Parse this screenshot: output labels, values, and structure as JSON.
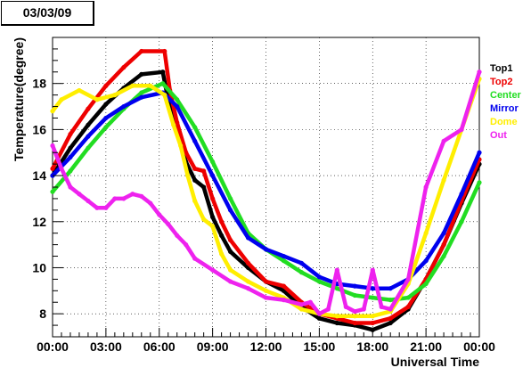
{
  "date_label": "03/03/09",
  "chart_data": {
    "type": "scatter",
    "xlabel": "Universal Time",
    "ylabel": "Temperature(degree)",
    "xlim": [
      0,
      24
    ],
    "ylim": [
      7,
      20
    ],
    "x_ticks": [
      {
        "value": 0,
        "label": "00:00"
      },
      {
        "value": 3,
        "label": "03:00"
      },
      {
        "value": 6,
        "label": "06:00"
      },
      {
        "value": 9,
        "label": "09:00"
      },
      {
        "value": 12,
        "label": "12:00"
      },
      {
        "value": 15,
        "label": "15:00"
      },
      {
        "value": 18,
        "label": "18:00"
      },
      {
        "value": 21,
        "label": "21:00"
      },
      {
        "value": 24,
        "label": "00:00"
      }
    ],
    "y_ticks": [
      {
        "value": 8,
        "label": "8"
      },
      {
        "value": 10,
        "label": "10"
      },
      {
        "value": 12,
        "label": "12"
      },
      {
        "value": 14,
        "label": "14"
      },
      {
        "value": 16,
        "label": "16"
      },
      {
        "value": 18,
        "label": "18"
      }
    ],
    "grid": true,
    "legend_position": "right",
    "series": [
      {
        "name": "Top1",
        "color": "#000000",
        "points": [
          [
            0,
            14
          ],
          [
            1,
            15.2
          ],
          [
            2,
            16.2
          ],
          [
            3,
            17.1
          ],
          [
            4,
            17.8
          ],
          [
            5,
            18.4
          ],
          [
            6.2,
            18.5
          ],
          [
            6.5,
            17.3
          ],
          [
            7,
            16
          ],
          [
            7.5,
            14.6
          ],
          [
            8,
            13.8
          ],
          [
            8.5,
            13.5
          ],
          [
            9,
            12.2
          ],
          [
            9.5,
            11.4
          ],
          [
            10,
            10.7
          ],
          [
            11,
            10
          ],
          [
            12,
            9.4
          ],
          [
            13,
            9
          ],
          [
            14,
            8.3
          ],
          [
            15,
            7.8
          ],
          [
            16,
            7.6
          ],
          [
            17,
            7.5
          ],
          [
            18,
            7.3
          ],
          [
            19,
            7.6
          ],
          [
            20,
            8.2
          ],
          [
            21,
            9.5
          ],
          [
            22,
            11
          ],
          [
            23,
            12.8
          ],
          [
            24,
            14.5
          ]
        ]
      },
      {
        "name": "Top2",
        "color": "#ee0000",
        "points": [
          [
            0,
            14.3
          ],
          [
            1,
            15.8
          ],
          [
            2,
            16.9
          ],
          [
            3,
            17.9
          ],
          [
            4,
            18.7
          ],
          [
            5,
            19.4
          ],
          [
            6.3,
            19.4
          ],
          [
            6.6,
            17.7
          ],
          [
            7,
            16.3
          ],
          [
            7.5,
            15
          ],
          [
            8,
            14.3
          ],
          [
            8.5,
            14.2
          ],
          [
            9,
            13
          ],
          [
            9.5,
            12
          ],
          [
            10,
            11.2
          ],
          [
            11,
            10.2
          ],
          [
            12,
            9.4
          ],
          [
            13,
            9.2
          ],
          [
            14,
            8.5
          ],
          [
            15,
            8
          ],
          [
            16,
            7.8
          ],
          [
            17,
            7.6
          ],
          [
            18,
            7.6
          ],
          [
            19,
            7.8
          ],
          [
            20,
            8.3
          ],
          [
            21,
            9.5
          ],
          [
            22,
            11
          ],
          [
            23,
            12.9
          ],
          [
            24,
            14.7
          ]
        ]
      },
      {
        "name": "Center",
        "color": "#22dd22",
        "points": [
          [
            0,
            13.3
          ],
          [
            1,
            14.2
          ],
          [
            2,
            15.2
          ],
          [
            3,
            16.1
          ],
          [
            4,
            16.9
          ],
          [
            5,
            17.6
          ],
          [
            6.2,
            18
          ],
          [
            7,
            17.3
          ],
          [
            8,
            16.1
          ],
          [
            9,
            14.6
          ],
          [
            10,
            13
          ],
          [
            11,
            11.5
          ],
          [
            12,
            10.8
          ],
          [
            13,
            10.3
          ],
          [
            14,
            9.8
          ],
          [
            15,
            9.4
          ],
          [
            16,
            9.1
          ],
          [
            17,
            8.8
          ],
          [
            18,
            8.7
          ],
          [
            19,
            8.6
          ],
          [
            20,
            8.7
          ],
          [
            21,
            9.3
          ],
          [
            22,
            10.5
          ],
          [
            23,
            12
          ],
          [
            24,
            13.7
          ]
        ]
      },
      {
        "name": "Mirror",
        "color": "#0000ee",
        "points": [
          [
            0,
            14
          ],
          [
            1,
            14.8
          ],
          [
            2,
            15.7
          ],
          [
            3,
            16.5
          ],
          [
            4,
            17
          ],
          [
            5,
            17.4
          ],
          [
            6.2,
            17.6
          ],
          [
            7,
            17
          ],
          [
            8,
            15.5
          ],
          [
            9,
            14
          ],
          [
            10,
            12.5
          ],
          [
            11,
            11.3
          ],
          [
            12,
            10.8
          ],
          [
            13,
            10.5
          ],
          [
            14,
            10.2
          ],
          [
            15,
            9.6
          ],
          [
            16,
            9.3
          ],
          [
            17,
            9.2
          ],
          [
            18,
            9.1
          ],
          [
            19,
            9.1
          ],
          [
            20,
            9.5
          ],
          [
            21,
            10.3
          ],
          [
            22,
            11.5
          ],
          [
            23,
            13.2
          ],
          [
            24,
            15
          ]
        ]
      },
      {
        "name": "Dome",
        "color": "#ffee00",
        "points": [
          [
            0,
            16.8
          ],
          [
            0.5,
            17.3
          ],
          [
            1.5,
            17.7
          ],
          [
            2.5,
            17.3
          ],
          [
            3.5,
            17.5
          ],
          [
            4.5,
            17.9
          ],
          [
            5.5,
            17.9
          ],
          [
            6.3,
            17.5
          ],
          [
            6.8,
            16.2
          ],
          [
            7.2,
            15.3
          ],
          [
            7.6,
            14
          ],
          [
            8,
            12.9
          ],
          [
            8.5,
            12.1
          ],
          [
            9,
            11.8
          ],
          [
            9.5,
            10.6
          ],
          [
            10,
            9.9
          ],
          [
            11,
            9.4
          ],
          [
            12,
            9
          ],
          [
            13,
            8.7
          ],
          [
            14,
            8.2
          ],
          [
            15,
            8
          ],
          [
            16,
            7.9
          ],
          [
            17,
            7.9
          ],
          [
            18,
            7.9
          ],
          [
            19,
            8.1
          ],
          [
            20,
            9.3
          ],
          [
            21,
            11.5
          ],
          [
            22,
            13.8
          ],
          [
            23,
            16
          ],
          [
            24,
            18.2
          ]
        ]
      },
      {
        "name": "Out",
        "color": "#ee22ee",
        "points": [
          [
            0,
            15.3
          ],
          [
            0.5,
            14.3
          ],
          [
            1,
            13.5
          ],
          [
            1.5,
            13.2
          ],
          [
            2,
            12.9
          ],
          [
            2.5,
            12.6
          ],
          [
            3,
            12.6
          ],
          [
            3.5,
            13
          ],
          [
            4,
            13
          ],
          [
            4.5,
            13.2
          ],
          [
            5,
            13.1
          ],
          [
            5.5,
            12.8
          ],
          [
            6,
            12.3
          ],
          [
            6.5,
            11.9
          ],
          [
            7,
            11.4
          ],
          [
            7.5,
            11
          ],
          [
            8,
            10.4
          ],
          [
            9,
            9.9
          ],
          [
            10,
            9.4
          ],
          [
            11,
            9.1
          ],
          [
            12,
            8.7
          ],
          [
            13,
            8.6
          ],
          [
            14,
            8.4
          ],
          [
            14.5,
            8.5
          ],
          [
            15,
            8
          ],
          [
            15.5,
            8.2
          ],
          [
            16,
            9.9
          ],
          [
            16.5,
            8.3
          ],
          [
            17,
            8.1
          ],
          [
            17.5,
            8.2
          ],
          [
            18,
            9.9
          ],
          [
            18.5,
            8.3
          ],
          [
            19,
            8.2
          ],
          [
            20,
            9.5
          ],
          [
            21,
            13.5
          ],
          [
            22,
            15.5
          ],
          [
            23,
            16
          ],
          [
            24,
            18.5
          ]
        ]
      }
    ]
  }
}
